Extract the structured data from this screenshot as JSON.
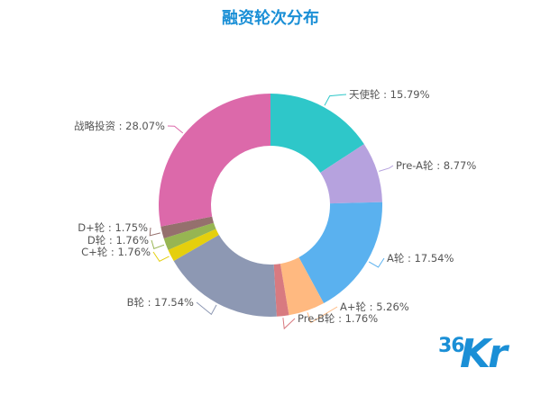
{
  "chart_data": {
    "type": "pie",
    "title": "融资轮次分布",
    "slices": [
      {
        "label": "天使轮",
        "value": 15.79,
        "display": "天使轮 : 15.79%",
        "color": "#2ec7c9"
      },
      {
        "label": "Pre-A轮",
        "value": 8.77,
        "display": "Pre-A轮 : 8.77%",
        "color": "#b6a2de"
      },
      {
        "label": "A轮",
        "value": 17.54,
        "display": "A轮 : 17.54%",
        "color": "#5ab1ef"
      },
      {
        "label": "A+轮",
        "value": 5.26,
        "display": "A+轮 : 5.26%",
        "color": "#ffb980"
      },
      {
        "label": "Pre-B轮",
        "value": 1.76,
        "display": "Pre-B轮 : 1.76%",
        "color": "#d87a80"
      },
      {
        "label": "B轮",
        "value": 17.54,
        "display": "B轮 : 17.54%",
        "color": "#8d98b3"
      },
      {
        "label": "C+轮",
        "value": 1.76,
        "display": "C+轮 : 1.76%",
        "color": "#e5cf0d"
      },
      {
        "label": "D轮",
        "value": 1.76,
        "display": "D轮 : 1.76%",
        "color": "#97b552"
      },
      {
        "label": "D+轮",
        "value": 1.75,
        "display": "D+轮 : 1.75%",
        "color": "#95706d"
      },
      {
        "label": "战略投资",
        "value": 28.07,
        "display": "战略投资 : 28.07%",
        "color": "#dc69aa"
      }
    ],
    "legend": "none",
    "style": "donut"
  },
  "logo": {
    "top": "36",
    "bottom": "Kr"
  },
  "colors": {
    "title": "#1a8fd6",
    "logo": "#1a8fd6"
  }
}
